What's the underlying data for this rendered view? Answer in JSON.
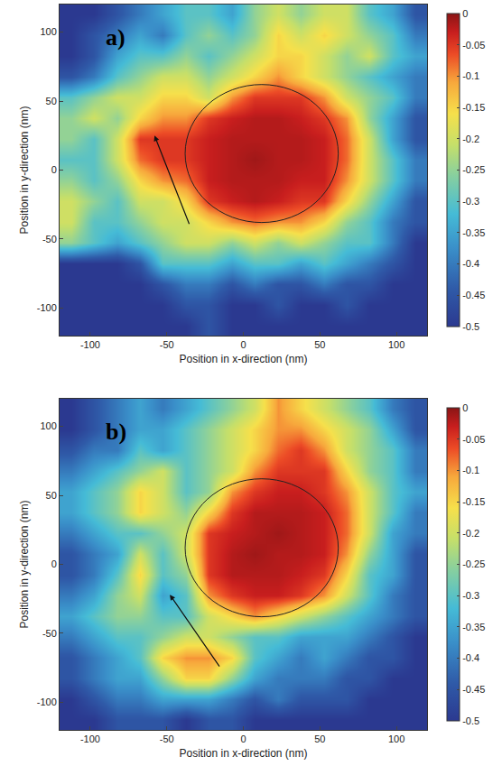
{
  "chart_data": [
    {
      "type": "heatmap",
      "label": "a)",
      "x_label": "Position in x-direction (nm)",
      "y_label": "Position in y-direction (nm)",
      "xlim": [
        -120,
        120
      ],
      "ylim": [
        -120,
        120
      ],
      "xticks": [
        -100,
        -50,
        0,
        50,
        100
      ],
      "yticks": [
        -100,
        -50,
        0,
        50,
        100
      ],
      "x": [
        -112.5,
        -97.5,
        -82.5,
        -67.5,
        -52.5,
        -37.5,
        -22.5,
        -7.5,
        7.5,
        22.5,
        37.5,
        52.5,
        67.5,
        82.5,
        97.5,
        112.5
      ],
      "y": [
        -112.5,
        -97.5,
        -82.5,
        -67.5,
        -52.5,
        -37.5,
        -22.5,
        -7.5,
        7.5,
        22.5,
        37.5,
        52.5,
        67.5,
        82.5,
        97.5,
        112.5
      ],
      "z": [
        [
          -0.5,
          -0.5,
          -0.5,
          -0.5,
          -0.5,
          -0.5,
          -0.45,
          -0.5,
          -0.5,
          -0.5,
          -0.5,
          -0.5,
          -0.5,
          -0.5,
          -0.5,
          -0.5
        ],
        [
          -0.5,
          -0.5,
          -0.5,
          -0.5,
          -0.5,
          -0.45,
          -0.45,
          -0.5,
          -0.5,
          -0.45,
          -0.5,
          -0.5,
          -0.45,
          -0.5,
          -0.5,
          -0.5
        ],
        [
          -0.5,
          -0.5,
          -0.5,
          -0.5,
          -0.45,
          -0.4,
          -0.4,
          -0.45,
          -0.4,
          -0.45,
          -0.45,
          -0.4,
          -0.45,
          -0.45,
          -0.5,
          -0.5
        ],
        [
          -0.5,
          -0.5,
          -0.5,
          -0.45,
          -0.3,
          -0.3,
          -0.3,
          -0.35,
          -0.3,
          -0.3,
          -0.35,
          -0.3,
          -0.35,
          -0.4,
          -0.45,
          -0.5
        ],
        [
          -0.25,
          -0.3,
          -0.35,
          -0.3,
          -0.25,
          -0.2,
          -0.2,
          -0.25,
          -0.2,
          -0.25,
          -0.2,
          -0.25,
          -0.3,
          -0.3,
          -0.4,
          -0.5
        ],
        [
          -0.2,
          -0.3,
          -0.3,
          -0.25,
          -0.2,
          -0.2,
          -0.15,
          -0.1,
          -0.08,
          -0.1,
          -0.1,
          -0.15,
          -0.25,
          -0.3,
          -0.4,
          -0.45
        ],
        [
          -0.2,
          -0.25,
          -0.3,
          -0.2,
          -0.2,
          -0.15,
          -0.05,
          -0.03,
          -0.02,
          -0.03,
          -0.05,
          -0.05,
          -0.15,
          -0.25,
          -0.35,
          -0.45
        ],
        [
          -0.25,
          -0.3,
          -0.25,
          -0.15,
          -0.1,
          -0.08,
          -0.03,
          -0.02,
          -0.02,
          -0.02,
          -0.03,
          -0.03,
          -0.1,
          -0.2,
          -0.3,
          -0.4
        ],
        [
          -0.3,
          -0.3,
          -0.2,
          -0.08,
          -0.05,
          -0.05,
          -0.03,
          -0.02,
          -0.01,
          -0.02,
          -0.02,
          -0.03,
          -0.08,
          -0.2,
          -0.3,
          -0.4
        ],
        [
          -0.25,
          -0.3,
          -0.2,
          -0.05,
          -0.05,
          -0.05,
          -0.03,
          -0.02,
          -0.02,
          -0.02,
          -0.02,
          -0.03,
          -0.08,
          -0.2,
          -0.35,
          -0.45
        ],
        [
          -0.25,
          -0.2,
          -0.25,
          -0.15,
          -0.1,
          -0.1,
          -0.05,
          -0.03,
          -0.02,
          -0.02,
          -0.03,
          -0.05,
          -0.1,
          -0.25,
          -0.35,
          -0.45
        ],
        [
          -0.3,
          -0.25,
          -0.2,
          -0.2,
          -0.15,
          -0.15,
          -0.2,
          -0.1,
          -0.05,
          -0.05,
          -0.05,
          -0.1,
          -0.2,
          -0.25,
          -0.3,
          -0.4
        ],
        [
          -0.45,
          -0.4,
          -0.3,
          -0.25,
          -0.2,
          -0.2,
          -0.25,
          -0.2,
          -0.15,
          -0.1,
          -0.15,
          -0.2,
          -0.25,
          -0.3,
          -0.35,
          -0.4
        ],
        [
          -0.5,
          -0.45,
          -0.35,
          -0.3,
          -0.3,
          -0.25,
          -0.3,
          -0.25,
          -0.2,
          -0.15,
          -0.15,
          -0.2,
          -0.25,
          -0.2,
          -0.3,
          -0.35
        ],
        [
          -0.5,
          -0.45,
          -0.4,
          -0.35,
          -0.4,
          -0.3,
          -0.25,
          -0.3,
          -0.25,
          -0.15,
          -0.2,
          -0.15,
          -0.2,
          -0.25,
          -0.3,
          -0.4
        ],
        [
          -0.5,
          -0.5,
          -0.45,
          -0.4,
          -0.35,
          -0.3,
          -0.3,
          -0.35,
          -0.25,
          -0.2,
          -0.25,
          -0.2,
          -0.2,
          -0.3,
          -0.35,
          -0.45
        ]
      ],
      "colorbar": {
        "range": [
          -0.5,
          0
        ],
        "ticks": [
          0,
          -0.05,
          -0.1,
          -0.15,
          -0.2,
          -0.25,
          -0.3,
          -0.35,
          -0.4,
          -0.45,
          -0.5
        ]
      },
      "circle": {
        "center": [
          12,
          12
        ],
        "radius": 50
      },
      "arrow": {
        "from": [
          -35,
          -40
        ],
        "to": [
          -58,
          25
        ]
      }
    },
    {
      "type": "heatmap",
      "label": "b)",
      "x_label": "Position in x-direction (nm)",
      "y_label": "Position in y-direction (nm)",
      "xlim": [
        -120,
        120
      ],
      "ylim": [
        -120,
        120
      ],
      "xticks": [
        -100,
        -50,
        0,
        50,
        100
      ],
      "yticks": [
        -100,
        -50,
        0,
        50,
        100
      ],
      "x": [
        -112.5,
        -97.5,
        -82.5,
        -67.5,
        -52.5,
        -37.5,
        -22.5,
        -7.5,
        7.5,
        22.5,
        37.5,
        52.5,
        67.5,
        82.5,
        97.5,
        112.5
      ],
      "y": [
        -112.5,
        -97.5,
        -82.5,
        -67.5,
        -52.5,
        -37.5,
        -22.5,
        -7.5,
        7.5,
        22.5,
        37.5,
        52.5,
        67.5,
        82.5,
        97.5,
        112.5
      ],
      "z": [
        [
          -0.5,
          -0.5,
          -0.45,
          -0.45,
          -0.45,
          -0.5,
          -0.45,
          -0.45,
          -0.5,
          -0.5,
          -0.5,
          -0.5,
          -0.5,
          -0.5,
          -0.5,
          -0.5
        ],
        [
          -0.5,
          -0.45,
          -0.4,
          -0.4,
          -0.35,
          -0.35,
          -0.35,
          -0.4,
          -0.45,
          -0.4,
          -0.45,
          -0.45,
          -0.45,
          -0.5,
          -0.5,
          -0.5
        ],
        [
          -0.45,
          -0.4,
          -0.35,
          -0.35,
          -0.25,
          -0.15,
          -0.15,
          -0.25,
          -0.35,
          -0.4,
          -0.4,
          -0.4,
          -0.45,
          -0.45,
          -0.5,
          -0.5
        ],
        [
          -0.45,
          -0.4,
          -0.35,
          -0.3,
          -0.15,
          -0.1,
          -0.1,
          -0.15,
          -0.3,
          -0.35,
          -0.4,
          -0.35,
          -0.4,
          -0.45,
          -0.45,
          -0.5
        ],
        [
          -0.4,
          -0.35,
          -0.3,
          -0.3,
          -0.25,
          -0.2,
          -0.2,
          -0.25,
          -0.3,
          -0.3,
          -0.35,
          -0.35,
          -0.35,
          -0.4,
          -0.45,
          -0.5
        ],
        [
          -0.35,
          -0.3,
          -0.25,
          -0.25,
          -0.3,
          -0.3,
          -0.2,
          -0.15,
          -0.1,
          -0.15,
          -0.2,
          -0.25,
          -0.3,
          -0.35,
          -0.4,
          -0.45
        ],
        [
          -0.4,
          -0.35,
          -0.25,
          -0.2,
          -0.35,
          -0.3,
          -0.1,
          -0.05,
          -0.03,
          -0.03,
          -0.05,
          -0.1,
          -0.2,
          -0.3,
          -0.4,
          -0.45
        ],
        [
          -0.45,
          -0.4,
          -0.3,
          -0.15,
          -0.3,
          -0.25,
          -0.05,
          -0.02,
          -0.02,
          -0.02,
          -0.03,
          -0.05,
          -0.15,
          -0.3,
          -0.35,
          -0.45
        ],
        [
          -0.45,
          -0.4,
          -0.35,
          -0.2,
          -0.3,
          -0.2,
          -0.05,
          -0.02,
          -0.01,
          -0.02,
          -0.02,
          -0.03,
          -0.1,
          -0.25,
          -0.35,
          -0.45
        ],
        [
          -0.4,
          -0.35,
          -0.3,
          -0.3,
          -0.25,
          -0.2,
          -0.05,
          -0.03,
          -0.02,
          -0.01,
          -0.02,
          -0.03,
          -0.08,
          -0.2,
          -0.35,
          -0.4
        ],
        [
          -0.35,
          -0.3,
          -0.25,
          -0.15,
          -0.2,
          -0.25,
          -0.15,
          -0.05,
          -0.02,
          -0.02,
          -0.02,
          -0.03,
          -0.08,
          -0.2,
          -0.3,
          -0.4
        ],
        [
          -0.35,
          -0.3,
          -0.25,
          -0.15,
          -0.2,
          -0.3,
          -0.25,
          -0.1,
          -0.05,
          -0.03,
          -0.03,
          -0.05,
          -0.1,
          -0.2,
          -0.3,
          -0.35
        ],
        [
          -0.4,
          -0.35,
          -0.3,
          -0.25,
          -0.2,
          -0.3,
          -0.25,
          -0.2,
          -0.1,
          -0.05,
          -0.05,
          -0.05,
          -0.15,
          -0.25,
          -0.3,
          -0.4
        ],
        [
          -0.45,
          -0.4,
          -0.4,
          -0.3,
          -0.35,
          -0.3,
          -0.25,
          -0.2,
          -0.15,
          -0.08,
          -0.05,
          -0.1,
          -0.2,
          -0.25,
          -0.3,
          -0.4
        ],
        [
          -0.5,
          -0.45,
          -0.4,
          -0.35,
          -0.35,
          -0.3,
          -0.25,
          -0.2,
          -0.15,
          -0.1,
          -0.1,
          -0.15,
          -0.2,
          -0.25,
          -0.35,
          -0.45
        ],
        [
          -0.5,
          -0.45,
          -0.4,
          -0.35,
          -0.4,
          -0.35,
          -0.3,
          -0.25,
          -0.2,
          -0.1,
          -0.15,
          -0.2,
          -0.25,
          -0.3,
          -0.4,
          -0.45
        ]
      ],
      "colorbar": {
        "range": [
          -0.5,
          0
        ],
        "ticks": [
          0,
          -0.05,
          -0.1,
          -0.15,
          -0.2,
          -0.25,
          -0.3,
          -0.35,
          -0.4,
          -0.45,
          -0.5
        ]
      },
      "circle": {
        "center": [
          12,
          12
        ],
        "radius": 50
      },
      "arrow": {
        "from": [
          -15,
          -75
        ],
        "to": [
          -48,
          -22
        ]
      }
    }
  ]
}
